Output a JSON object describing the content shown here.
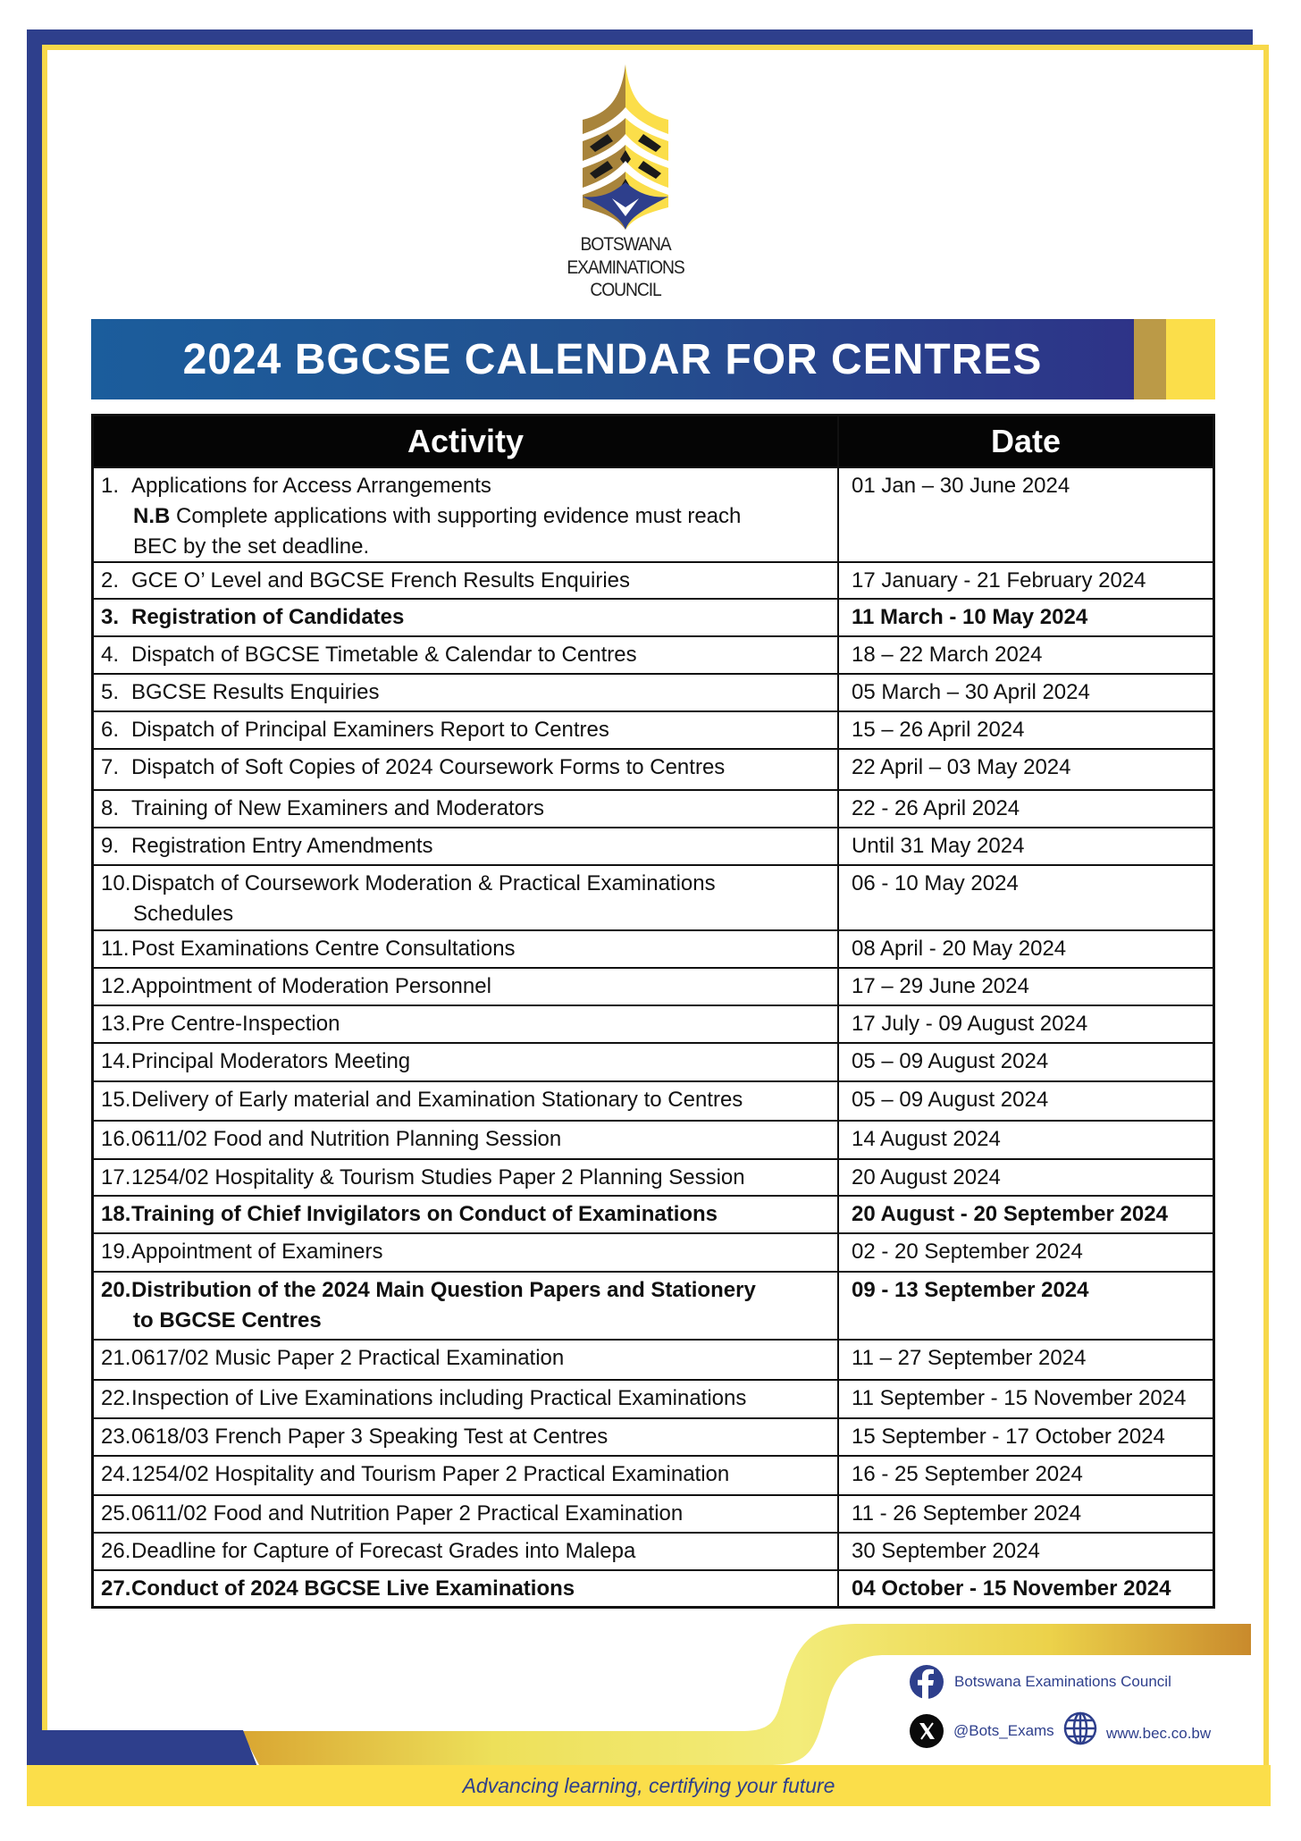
{
  "organization": {
    "name_lines": [
      "BOTSWANA",
      "EXAMINATIONS",
      "COUNCIL"
    ]
  },
  "title": "2024 BGCSE CALENDAR FOR CENTRES",
  "table": {
    "headers": {
      "activity": "Activity",
      "date": "Date"
    },
    "rows": [
      {
        "num": "1.",
        "activity": "Applications for Access Arrangements",
        "note_label": "N.B",
        "note": " Complete applications with supporting evidence must reach",
        "note2": "BEC by the set deadline.",
        "date": "01 Jan – 30 June 2024",
        "bold": false
      },
      {
        "num": "2.",
        "activity": "GCE O’ Level and BGCSE French Results Enquiries",
        "date": "17 January - 21 February 2024",
        "bold": false
      },
      {
        "num": "3.",
        "activity": "Registration of Candidates",
        "date": "11 March - 10 May 2024",
        "bold": true
      },
      {
        "num": "4.",
        "activity": "Dispatch of BGCSE Timetable & Calendar to Centres",
        "date": "18 – 22 March 2024",
        "bold": false
      },
      {
        "num": "5.",
        "activity": "BGCSE Results Enquiries",
        "date": "05 March – 30 April 2024",
        "bold": false
      },
      {
        "num": "6.",
        "activity": "Dispatch of Principal Examiners Report to Centres",
        "date": "15 – 26 April 2024",
        "bold": false
      },
      {
        "num": "7.",
        "activity": "Dispatch of Soft Copies of 2024 Coursework Forms to Centres",
        "date": "22 April – 03 May 2024",
        "bold": false
      },
      {
        "num": "8.",
        "activity": "Training of New Examiners and Moderators",
        "date": "22 - 26 April 2024",
        "bold": false
      },
      {
        "num": "9.",
        "activity": "Registration Entry Amendments",
        "date": "Until 31 May 2024",
        "bold": false
      },
      {
        "num": "10.",
        "activity": "Dispatch of Coursework Moderation & Practical Examinations",
        "activity2": "Schedules",
        "date": "06 - 10 May 2024",
        "bold": false
      },
      {
        "num": "11.",
        "activity": "Post Examinations Centre Consultations",
        "date": "08 April - 20 May 2024",
        "bold": false
      },
      {
        "num": "12.",
        "activity": "Appointment of Moderation Personnel",
        "date": "17 – 29 June 2024",
        "bold": false
      },
      {
        "num": "13.",
        "activity": "Pre Centre-Inspection",
        "date": "17 July - 09 August 2024",
        "bold": false
      },
      {
        "num": "14.",
        "activity": "Principal Moderators Meeting",
        "date": "05 – 09 August 2024",
        "bold": false
      },
      {
        "num": "15.",
        "activity": "Delivery of Early material and Examination Stationary to Centres",
        "date": "05 – 09 August 2024",
        "bold": false
      },
      {
        "num": "16.",
        "activity": "0611/02 Food and Nutrition Planning Session",
        "date": "14 August 2024",
        "bold": false
      },
      {
        "num": "17.",
        "activity": "1254/02 Hospitality & Tourism Studies Paper 2 Planning Session",
        "date": "20 August 2024",
        "bold": false
      },
      {
        "num": "18.",
        "activity": "Training of Chief Invigilators on Conduct of Examinations",
        "date": "20 August - 20 September 2024",
        "bold": true
      },
      {
        "num": "19.",
        "activity": "Appointment of Examiners",
        "date": "02 - 20 September 2024",
        "bold": false
      },
      {
        "num": "20.",
        "activity": "Distribution of the 2024 Main Question Papers and Stationery",
        "activity2": "to BGCSE Centres",
        "date": "09 - 13 September 2024",
        "bold": true
      },
      {
        "num": "21.",
        "activity": "0617/02 Music Paper 2 Practical Examination",
        "date": "11 – 27 September 2024",
        "bold": false
      },
      {
        "num": "22.",
        "activity": "Inspection of Live Examinations including Practical Examinations",
        "date": "11 September - 15 November 2024",
        "bold": false
      },
      {
        "num": "23.",
        "activity": "0618/03 French Paper 3 Speaking Test at Centres",
        "date": "15 September - 17 October 2024",
        "bold": false
      },
      {
        "num": "24.",
        "activity": "1254/02 Hospitality and Tourism Paper 2 Practical Examination",
        "date": "16 - 25 September 2024",
        "bold": false
      },
      {
        "num": "25.",
        "activity": "0611/02 Food and Nutrition Paper 2 Practical Examination",
        "date": "11 - 26 September 2024",
        "bold": false
      },
      {
        "num": "26.",
        "activity": "Deadline for Capture of Forecast Grades into Malepa",
        "date": "30 September 2024",
        "bold": false
      },
      {
        "num": "27.",
        "activity": "Conduct of 2024 BGCSE Live Examinations",
        "date": "04 October - 15 November 2024",
        "bold": true
      }
    ]
  },
  "footer": {
    "facebook": "Botswana Examinations Council",
    "x_handle": "@Bots_Exams",
    "website": "www.bec.co.bw",
    "tagline": "Advancing learning, certifying your future"
  },
  "colors": {
    "brand_blue": "#2e3f8c",
    "brand_yellow": "#fbde4a",
    "brand_gold": "#bb9a47"
  },
  "icons": [
    "facebook-icon",
    "x-icon",
    "globe-icon"
  ]
}
